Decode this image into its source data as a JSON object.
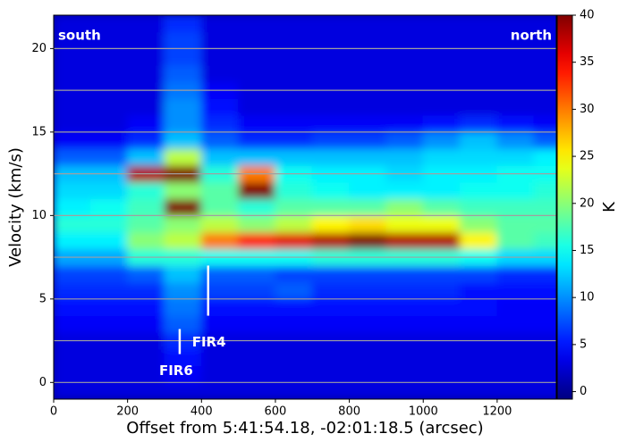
{
  "chart_data": {
    "type": "heatmap",
    "xlabel": "Offset from 5:41:54.18, -02:01:18.5 (arcsec)",
    "ylabel": "Velocity (km/s)",
    "colorbar_label": "K",
    "colormap": "jet",
    "xlim": [
      0,
      1360
    ],
    "ylim": [
      -1,
      22
    ],
    "xticks": [
      0,
      200,
      400,
      600,
      800,
      1000,
      1200
    ],
    "yticks": [
      0,
      5,
      10,
      15,
      20
    ],
    "hlines": [
      0,
      2.5,
      5,
      7.5,
      10,
      12.5,
      15,
      17.5,
      20
    ],
    "hline_color": "#a0a0a0",
    "clim": [
      -0.8,
      40
    ],
    "cticks": [
      0,
      5,
      10,
      15,
      20,
      25,
      30,
      35,
      40
    ],
    "x": [
      50,
      150,
      250,
      350,
      450,
      550,
      650,
      750,
      850,
      950,
      1050,
      1150,
      1250,
      1350
    ],
    "y": [
      -0.5,
      0.5,
      1.5,
      2.5,
      3.5,
      4.5,
      5.5,
      6.5,
      7.5,
      8.5,
      9.5,
      10.5,
      11.5,
      12.5,
      13.5,
      14.5,
      15.5,
      16.5,
      17.5,
      18.5,
      19.5,
      20.5,
      21.5
    ],
    "z": [
      [
        3,
        3,
        3,
        3,
        3,
        3,
        3,
        3,
        3,
        3,
        3,
        3,
        3,
        3
      ],
      [
        3,
        3,
        3,
        4,
        3,
        3,
        3,
        3,
        3,
        3,
        3,
        3,
        3,
        3
      ],
      [
        3,
        3,
        3,
        5,
        3,
        3,
        3,
        3,
        3,
        3,
        3,
        3,
        3,
        3
      ],
      [
        3,
        3,
        3,
        6,
        3,
        3,
        3,
        3,
        3,
        3,
        3,
        3,
        3,
        3
      ],
      [
        4,
        4,
        4,
        8,
        4,
        4,
        4,
        4,
        4,
        4,
        4,
        4,
        4,
        4
      ],
      [
        5,
        5,
        5,
        9,
        5,
        5,
        5,
        5,
        5,
        5,
        5,
        5,
        4,
        4
      ],
      [
        6,
        6,
        6,
        10,
        7,
        7,
        8,
        6,
        6,
        6,
        6,
        5,
        5,
        5
      ],
      [
        7,
        7,
        8,
        12,
        8,
        8,
        7,
        7,
        7,
        7,
        7,
        7,
        6,
        6
      ],
      [
        11,
        11,
        16,
        16,
        15,
        15,
        15,
        16,
        16,
        16,
        16,
        15,
        13,
        13
      ],
      [
        14,
        14,
        20,
        22,
        30,
        34,
        36,
        38,
        40,
        38,
        38,
        25,
        18,
        17
      ],
      [
        16,
        16,
        18,
        20,
        22,
        20,
        22,
        25,
        26,
        24,
        24,
        20,
        18,
        18
      ],
      [
        14,
        15,
        17,
        40,
        18,
        16,
        18,
        18,
        18,
        20,
        18,
        17,
        17,
        17
      ],
      [
        13,
        13,
        16,
        20,
        18,
        40,
        16,
        15,
        14,
        14,
        14,
        15,
        15,
        16
      ],
      [
        12,
        12,
        38,
        40,
        16,
        30,
        15,
        14,
        14,
        13,
        14,
        14,
        15,
        15
      ],
      [
        8,
        8,
        12,
        22,
        12,
        12,
        12,
        12,
        12,
        12,
        13,
        13,
        13,
        14
      ],
      [
        4,
        4,
        6,
        12,
        8,
        6,
        6,
        7,
        7,
        8,
        10,
        12,
        10,
        8
      ],
      [
        3,
        3,
        4,
        10,
        6,
        4,
        4,
        4,
        4,
        4,
        5,
        6,
        5,
        4
      ],
      [
        3,
        3,
        3,
        10,
        5,
        3,
        3,
        3,
        3,
        3,
        3,
        3,
        3,
        3
      ],
      [
        3,
        3,
        3,
        9,
        4,
        3,
        3,
        3,
        3,
        3,
        3,
        3,
        3,
        3
      ],
      [
        3,
        3,
        3,
        8,
        3,
        3,
        3,
        3,
        3,
        3,
        3,
        3,
        3,
        3
      ],
      [
        3,
        3,
        3,
        7,
        3,
        3,
        3,
        3,
        3,
        3,
        3,
        3,
        3,
        3
      ],
      [
        3,
        3,
        3,
        7,
        3,
        3,
        3,
        3,
        3,
        3,
        3,
        3,
        3,
        3
      ],
      [
        3,
        3,
        3,
        6,
        3,
        3,
        3,
        3,
        3,
        3,
        3,
        3,
        3,
        3
      ]
    ],
    "corner_labels": [
      "south",
      "north"
    ],
    "annotations": [
      {
        "text": "FIR4",
        "x": 418,
        "v": [
          4,
          7
        ]
      },
      {
        "text": "FIR6",
        "x": 341,
        "v": [
          1.7,
          3.2
        ]
      }
    ]
  }
}
